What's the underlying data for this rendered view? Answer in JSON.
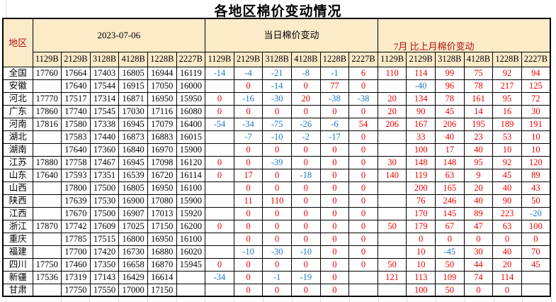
{
  "title": "各地区棉价变动情况",
  "colors": {
    "header_bg": "#fcebc9",
    "header_red_text": "#b01212",
    "value_up_red": "#f00000",
    "value_down_blue": "#1e78c8",
    "border_black": "#000000"
  },
  "table": {
    "region_header": "地区",
    "sections": [
      {
        "label": "2023-07-06",
        "columns": [
          "1129B",
          "2129B",
          "3128B",
          "4128B",
          "1228B",
          "2227B"
        ]
      },
      {
        "label": "当日棉价变动",
        "columns": [
          "1129B",
          "2129B",
          "3128B",
          "4128B",
          "1228B",
          "2227B"
        ]
      },
      {
        "label": "7月 比上月棉价变动",
        "columns": [
          "1129B",
          "2129B",
          "3128B",
          "4128B",
          "1228B",
          "2227B"
        ]
      }
    ],
    "rows": [
      {
        "region": "全国",
        "prices": [
          "17760",
          "17664",
          "17403",
          "16805",
          "16944",
          "16119"
        ],
        "daily": [
          "-14",
          "-4",
          "-21",
          "-8",
          "-1",
          "6"
        ],
        "monthly": [
          "110",
          "114",
          "99",
          "75",
          "92",
          "94"
        ]
      },
      {
        "region": "安徽",
        "prices": [
          "",
          "17640",
          "17544",
          "16915",
          "17050",
          "16000"
        ],
        "daily": [
          "",
          "0",
          "-14",
          "0",
          "77",
          "0"
        ],
        "monthly": [
          "",
          "-40",
          "96",
          "78",
          "217",
          "125"
        ]
      },
      {
        "region": "河北",
        "prices": [
          "17770",
          "17517",
          "17314",
          "16871",
          "16950",
          "15950"
        ],
        "daily": [
          "0",
          "-16",
          "-30",
          "20",
          "-38",
          "-38"
        ],
        "monthly": [
          "20",
          "134",
          "78",
          "161",
          "95",
          "72"
        ]
      },
      {
        "region": "广东",
        "prices": [
          "17860",
          "17740",
          "17545",
          "17030",
          "17116",
          "16080"
        ],
        "daily": [
          "0",
          "0",
          "0",
          "0",
          "0",
          "0"
        ],
        "monthly": [
          "20",
          "90",
          "45",
          "14",
          "16",
          "30"
        ]
      },
      {
        "region": "河南",
        "prices": [
          "17816",
          "17580",
          "17338",
          "16945",
          "17079",
          "16400"
        ],
        "daily": [
          "-54",
          "-34",
          "-75",
          "-26",
          "-6",
          "54"
        ],
        "monthly": [
          "206",
          "167",
          "206",
          "195",
          "189",
          "191"
        ]
      },
      {
        "region": "湖北",
        "prices": [
          "",
          "17583",
          "17440",
          "16873",
          "16883",
          "16015"
        ],
        "daily": [
          "",
          "-7",
          "-10",
          "-2",
          "-17",
          "0"
        ],
        "monthly": [
          "",
          "33",
          "40",
          "23",
          "53",
          "10"
        ]
      },
      {
        "region": "湖南",
        "prices": [
          "",
          "17640",
          "17360",
          "16840",
          "16970",
          "15900"
        ],
        "daily": [
          "",
          "0",
          "0",
          "0",
          "0",
          "0"
        ],
        "monthly": [
          "",
          "100",
          "17",
          "40",
          "10",
          "10"
        ]
      },
      {
        "region": "江苏",
        "prices": [
          "17880",
          "17758",
          "17467",
          "16945",
          "17098",
          "16120"
        ],
        "daily": [
          "0",
          "0",
          "-39",
          "0",
          "0",
          "0"
        ],
        "monthly": [
          "30",
          "148",
          "148",
          "95",
          "92",
          "120"
        ]
      },
      {
        "region": "山东",
        "prices": [
          "17640",
          "17593",
          "17351",
          "16539",
          "16720",
          "16114"
        ],
        "daily": [
          "0",
          "17",
          "0",
          "-18",
          "0",
          "0"
        ],
        "monthly": [
          "140",
          "119",
          "63",
          "9",
          "45",
          "89"
        ]
      },
      {
        "region": "山西",
        "prices": [
          "",
          "17800",
          "17500",
          "16805",
          "16950",
          "16100"
        ],
        "daily": [
          "",
          "0",
          "0",
          "0",
          "0",
          "0"
        ],
        "monthly": [
          "",
          "200",
          "165",
          "20",
          "40",
          "43"
        ]
      },
      {
        "region": "陕西",
        "prices": [
          "",
          "17639",
          "17530",
          "16900",
          "17080",
          "15900"
        ],
        "daily": [
          "",
          "11",
          "110",
          "0",
          "0",
          "0"
        ],
        "monthly": [
          "",
          "76",
          "246",
          "40",
          "90",
          "50"
        ]
      },
      {
        "region": "江西",
        "prices": [
          "",
          "17670",
          "17500",
          "16907",
          "17013",
          "15920"
        ],
        "daily": [
          "",
          "0",
          "0",
          "0",
          "0",
          "0"
        ],
        "monthly": [
          "",
          "170",
          "145",
          "89",
          "223",
          "-20"
        ]
      },
      {
        "region": "浙江",
        "prices": [
          "17870",
          "17742",
          "17609",
          "17025",
          "17150",
          "16200"
        ],
        "daily": [
          "0",
          "0",
          "0",
          "0",
          "0",
          "0"
        ],
        "monthly": [
          "50",
          "179",
          "67",
          "47",
          "63",
          "100"
        ]
      },
      {
        "region": "重庆",
        "prices": [
          "",
          "17785",
          "17515",
          "16800",
          "16950",
          "16100"
        ],
        "daily": [
          "",
          "0",
          "0",
          "0",
          "0",
          "0"
        ],
        "monthly": [
          "",
          "0",
          "0",
          "0",
          "0",
          "0"
        ]
      },
      {
        "region": "福建",
        "prices": [
          "",
          "17700",
          "17420",
          "16730",
          "16880",
          "16020"
        ],
        "daily": [
          "",
          "-10",
          "-30",
          "-10",
          "0",
          "0"
        ],
        "monthly": [
          "",
          "10",
          "-45",
          "30",
          "40",
          "70"
        ]
      },
      {
        "region": "四川",
        "prices": [
          "17750",
          "17460",
          "17350",
          "16658",
          "16870",
          "15945"
        ],
        "daily": [
          "0",
          "0",
          "0",
          "0",
          "0",
          "0"
        ],
        "monthly": [
          "50",
          "10",
          "50",
          "44",
          "20",
          "45"
        ]
      },
      {
        "region": "新疆",
        "prices": [
          "17536",
          "17319",
          "17143",
          "16429",
          "16614",
          ""
        ],
        "daily": [
          "-34",
          "0",
          "-1",
          "-19",
          "0",
          ""
        ],
        "monthly": [
          "121",
          "113",
          "109",
          "74",
          "114",
          ""
        ]
      },
      {
        "region": "甘肃",
        "prices": [
          "",
          "17750",
          "17550",
          "17000",
          "17150",
          ""
        ],
        "daily": [
          "",
          "0",
          "0",
          "0",
          "0",
          ""
        ],
        "monthly": [
          "",
          "100",
          "50",
          "0",
          "0",
          ""
        ]
      }
    ]
  }
}
